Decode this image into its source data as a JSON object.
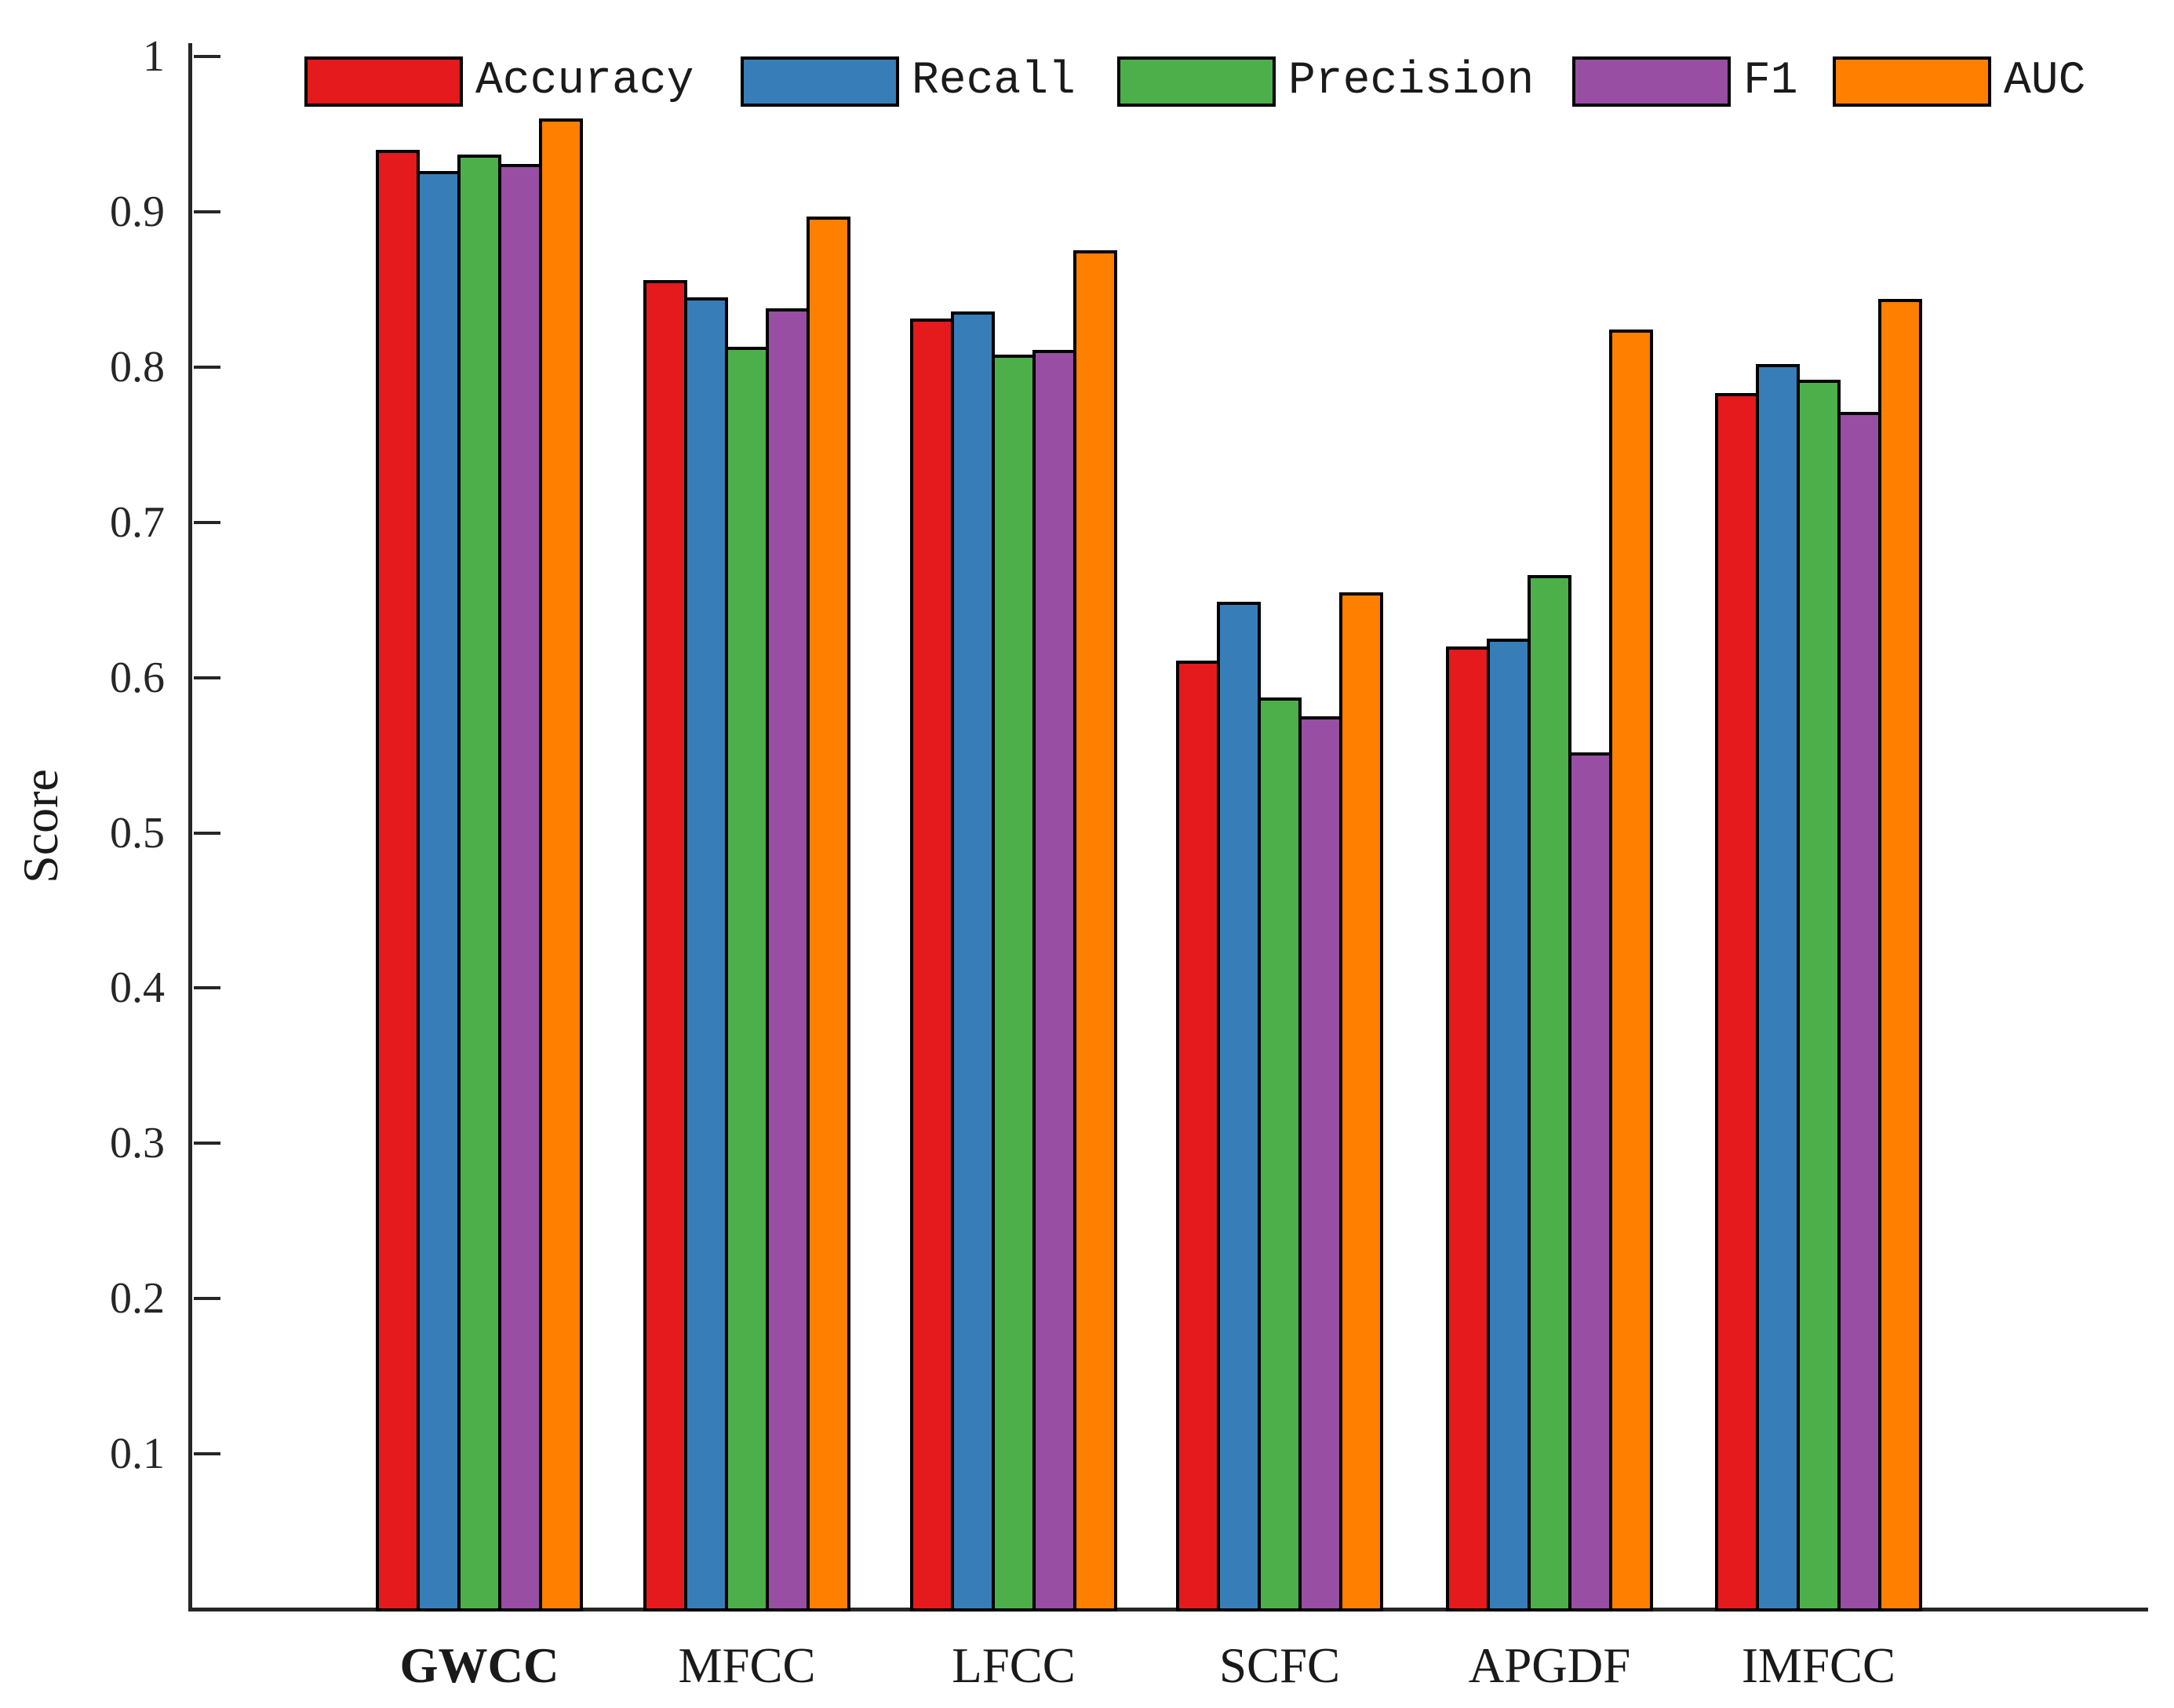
{
  "chart_data": {
    "type": "bar",
    "title": "",
    "ylabel": "Score",
    "xlabel": "",
    "categories": [
      "GWCC",
      "MFCC",
      "LFCC",
      "SCFC",
      "APGDF",
      "IMFCC"
    ],
    "bold_categories": [
      "GWCC"
    ],
    "series": [
      {
        "name": "Accuracy",
        "color": "#e41a1c",
        "values": [
          0.94,
          0.856,
          0.831,
          0.611,
          0.62,
          0.783
        ]
      },
      {
        "name": "Recall",
        "color": "#377eb8",
        "values": [
          0.926,
          0.845,
          0.836,
          0.649,
          0.625,
          0.802
        ]
      },
      {
        "name": "Precision",
        "color": "#4daf4a",
        "values": [
          0.937,
          0.813,
          0.808,
          0.587,
          0.666,
          0.792
        ]
      },
      {
        "name": "F1",
        "color": "#984ea3",
        "values": [
          0.931,
          0.838,
          0.811,
          0.575,
          0.552,
          0.771
        ]
      },
      {
        "name": "AUC",
        "color": "#ff7f00",
        "values": [
          0.96,
          0.897,
          0.875,
          0.655,
          0.824,
          0.844
        ]
      }
    ],
    "yticks": [
      {
        "value": 1.0,
        "label": "1"
      },
      {
        "value": 0.9,
        "label": "0.9"
      },
      {
        "value": 0.8,
        "label": "0.8"
      },
      {
        "value": 0.7,
        "label": "0.7"
      },
      {
        "value": 0.6,
        "label": "0.6"
      },
      {
        "value": 0.5,
        "label": "0.5"
      },
      {
        "value": 0.4,
        "label": "0.4"
      },
      {
        "value": 0.3,
        "label": "0.3"
      },
      {
        "value": 0.2,
        "label": "0.2"
      },
      {
        "value": 0.1,
        "label": "0.1"
      }
    ],
    "ylim": [
      0,
      1.008
    ],
    "grid": false,
    "legend_position": "top",
    "axis_color": "#262626",
    "bar_border_color": "#000000",
    "background_color": "#ffffff"
  }
}
